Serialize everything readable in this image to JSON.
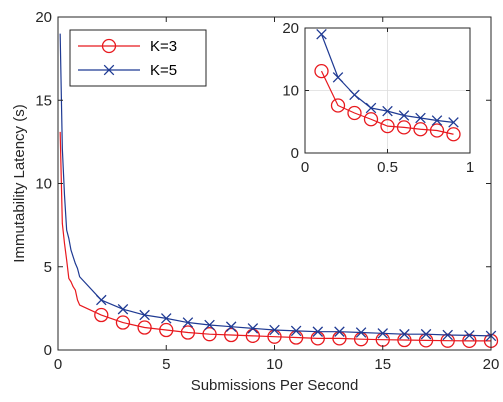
{
  "chart_data": [
    {
      "type": "line",
      "title": "",
      "xlabel": "Submissions Per Second",
      "ylabel": "Immutability Latency (s)",
      "xlim": [
        0,
        20
      ],
      "ylim": [
        0,
        20
      ],
      "xticks": [
        0,
        5,
        10,
        15,
        20
      ],
      "yticks": [
        0,
        5,
        10,
        15,
        20
      ],
      "grid": false,
      "legend_position": "top-left",
      "series": [
        {
          "name": "K=3",
          "color": "#e8191e",
          "marker": "circle",
          "x": [
            0.1,
            0.2,
            0.3,
            0.4,
            0.5,
            0.6,
            0.7,
            0.8,
            0.9,
            1,
            2,
            3,
            4,
            5,
            6,
            7,
            8,
            9,
            10,
            11,
            12,
            13,
            14,
            15,
            16,
            17,
            18,
            19,
            20
          ],
          "values": [
            13.1,
            7.6,
            6.4,
            5.4,
            4.3,
            4.1,
            3.8,
            3.6,
            3.0,
            2.7,
            2.1,
            1.65,
            1.35,
            1.2,
            1.05,
            0.95,
            0.9,
            0.85,
            0.8,
            0.75,
            0.7,
            0.7,
            0.65,
            0.62,
            0.6,
            0.58,
            0.56,
            0.55,
            0.55
          ]
        },
        {
          "name": "K=5",
          "color": "#1f3a93",
          "marker": "x",
          "x": [
            0.1,
            0.2,
            0.3,
            0.4,
            0.5,
            0.6,
            0.7,
            0.8,
            0.9,
            1,
            2,
            3,
            4,
            5,
            6,
            7,
            8,
            9,
            10,
            11,
            12,
            13,
            14,
            15,
            16,
            17,
            18,
            19,
            20
          ],
          "values": [
            19.0,
            12.1,
            9.3,
            7.2,
            6.7,
            6.0,
            5.6,
            5.2,
            4.9,
            4.4,
            3.0,
            2.45,
            2.1,
            1.9,
            1.65,
            1.5,
            1.4,
            1.3,
            1.2,
            1.15,
            1.1,
            1.1,
            1.05,
            1.0,
            0.95,
            0.95,
            0.9,
            0.88,
            0.85
          ]
        }
      ],
      "marker_x_from": 2
    },
    {
      "type": "line",
      "role": "inset",
      "xlim": [
        0,
        1
      ],
      "ylim": [
        0,
        20
      ],
      "xticks": [
        0,
        0.5,
        1
      ],
      "yticks": [
        0,
        10,
        20
      ],
      "grid": true,
      "series": [
        {
          "name": "K=3",
          "color": "#e8191e",
          "marker": "circle",
          "x": [
            0.1,
            0.2,
            0.3,
            0.4,
            0.5,
            0.6,
            0.7,
            0.8,
            0.9
          ],
          "values": [
            13.1,
            7.6,
            6.4,
            5.4,
            4.3,
            4.1,
            3.8,
            3.6,
            3.0
          ]
        },
        {
          "name": "K=5",
          "color": "#1f3a93",
          "marker": "x",
          "x": [
            0.1,
            0.2,
            0.3,
            0.4,
            0.5,
            0.6,
            0.7,
            0.8,
            0.9
          ],
          "values": [
            19.0,
            12.1,
            9.3,
            7.2,
            6.7,
            6.0,
            5.6,
            5.2,
            4.9
          ]
        }
      ]
    }
  ]
}
